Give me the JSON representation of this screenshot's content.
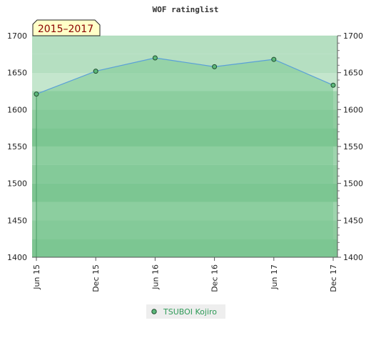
{
  "chart_data": {
    "type": "area",
    "title": "WOF ratinglist",
    "badge": "2015–2017",
    "x_categories": [
      "Jun 15",
      "Dec 15",
      "Jun 16",
      "Dec 16",
      "Jun 17",
      "Dec 17"
    ],
    "ylim": [
      1400,
      1700
    ],
    "y_ticks": [
      1400,
      1450,
      1500,
      1550,
      1600,
      1650,
      1700
    ],
    "grid": true,
    "legend_position": "bottom-center",
    "series": [
      {
        "name": "TSUBOI Kojiro",
        "points": [
          {
            "x": "Jun 15",
            "y": 1621
          },
          {
            "x": "Dec 15",
            "y": 1652
          },
          {
            "x": "Jun 16",
            "y": 1670
          },
          {
            "x": "Dec 16",
            "y": 1658
          },
          {
            "x": "Jun 17",
            "y": 1668
          },
          {
            "x": "Dec 17",
            "y": 1633
          }
        ]
      }
    ],
    "colors": {
      "area_fill": "#7bc894",
      "line": "#5aa0d8",
      "marker": "#5cb87a",
      "legend_text": "#2e9a57",
      "badge_bg": "#ffffc8",
      "badge_text": "#8b0000"
    }
  }
}
